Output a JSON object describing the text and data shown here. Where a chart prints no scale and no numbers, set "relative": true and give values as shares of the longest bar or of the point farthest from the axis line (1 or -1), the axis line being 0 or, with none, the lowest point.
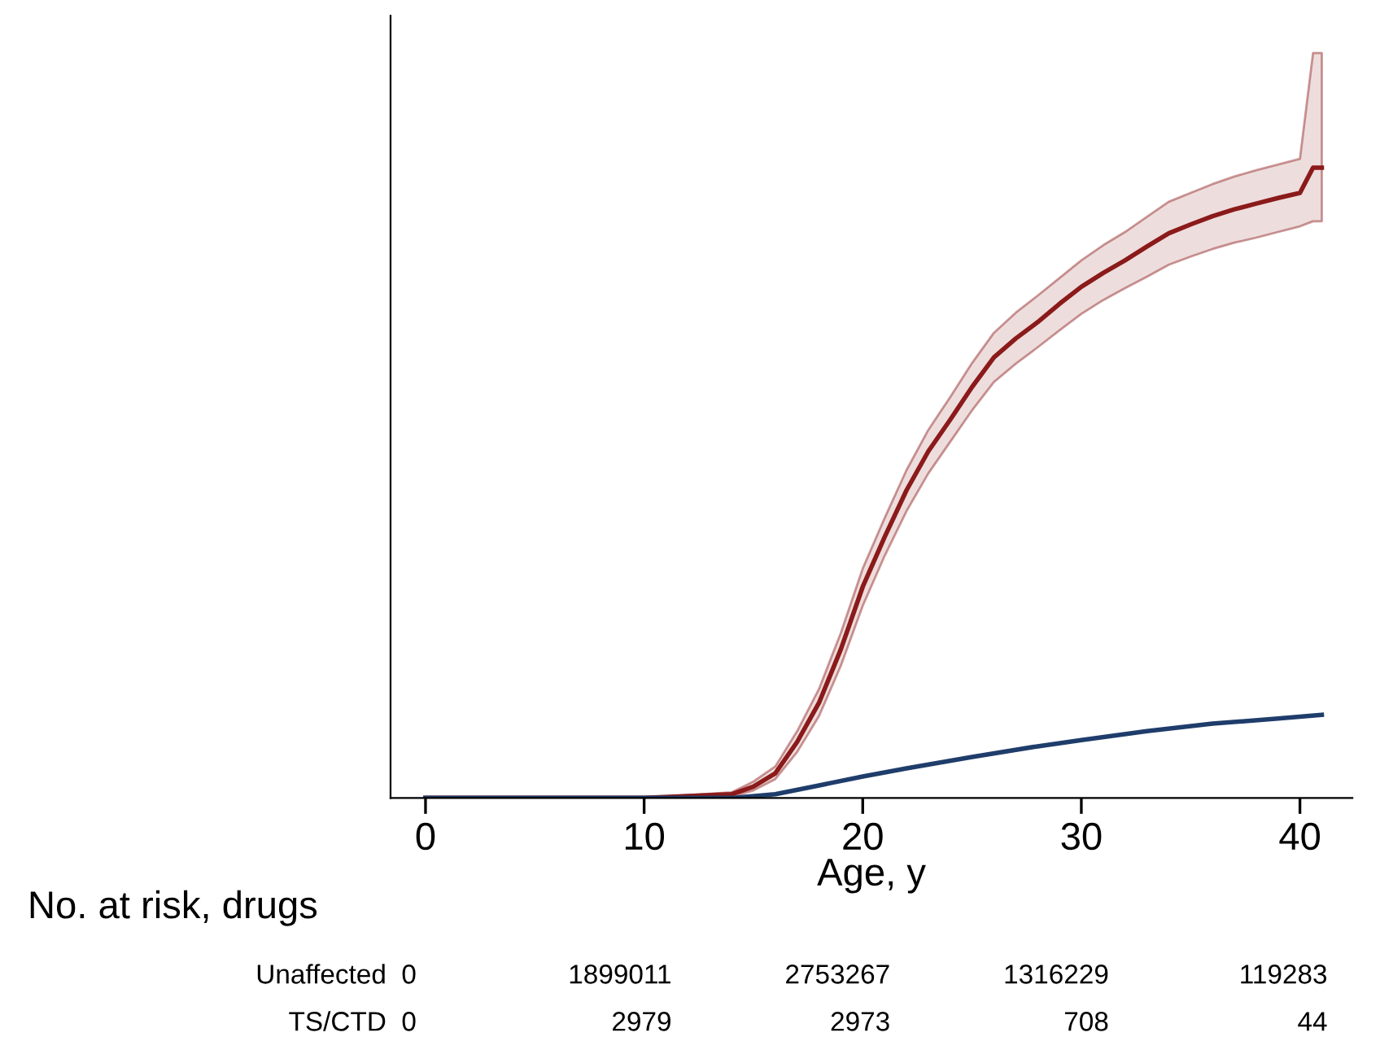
{
  "chart_data": {
    "type": "line",
    "relative": true,
    "xlabel": "Age, y",
    "xlim": [
      -1.6,
      42.4
    ],
    "xticks": [
      0,
      10,
      20,
      30,
      40
    ],
    "series": [
      {
        "color": "#8b1a1a",
        "x": [
          0,
          10,
          14,
          15,
          16,
          17,
          18,
          19,
          20,
          21,
          22,
          23,
          24,
          25,
          26,
          27,
          28,
          29,
          30,
          31,
          32,
          33,
          34,
          35,
          36,
          37,
          38,
          39,
          40,
          40.6,
          41
        ],
        "values": [
          0,
          0,
          0.006,
          0.018,
          0.039,
          0.089,
          0.151,
          0.236,
          0.335,
          0.414,
          0.488,
          0.55,
          0.6,
          0.652,
          0.699,
          0.729,
          0.755,
          0.784,
          0.811,
          0.833,
          0.853,
          0.875,
          0.896,
          0.91,
          0.923,
          0.934,
          0.943,
          0.952,
          0.96,
          1,
          1
        ],
        "lower": [
          0,
          0,
          0.002,
          0.012,
          0.03,
          0.073,
          0.13,
          0.21,
          0.305,
          0.384,
          0.455,
          0.515,
          0.565,
          0.615,
          0.66,
          0.689,
          0.715,
          0.742,
          0.768,
          0.79,
          0.809,
          0.827,
          0.846,
          0.859,
          0.871,
          0.881,
          0.889,
          0.898,
          0.907,
          0.915,
          0.915
        ],
        "upper": [
          0,
          0,
          0.009,
          0.026,
          0.05,
          0.106,
          0.173,
          0.262,
          0.364,
          0.444,
          0.52,
          0.584,
          0.636,
          0.69,
          0.738,
          0.77,
          0.797,
          0.825,
          0.853,
          0.877,
          0.898,
          0.922,
          0.946,
          0.96,
          0.974,
          0.986,
          0.996,
          1.005,
          1.014,
          1.182,
          1.182
        ]
      },
      {
        "color": "#1f3d6b",
        "x": [
          0,
          10,
          14,
          16,
          18,
          20,
          22,
          25,
          28,
          30,
          33,
          36,
          39,
          41
        ],
        "values": [
          0,
          0,
          0,
          0.006,
          0.02,
          0.034,
          0.047,
          0.065,
          0.082,
          0.092,
          0.106,
          0.118,
          0.126,
          0.132
        ]
      }
    ],
    "annotations": [
      "No. at risk, drugs",
      "Unaffected",
      "0",
      "1899011",
      "2753267",
      "1316229",
      "119283",
      "TS/CTD",
      "0",
      "2979",
      "2973",
      "708",
      "44"
    ]
  }
}
